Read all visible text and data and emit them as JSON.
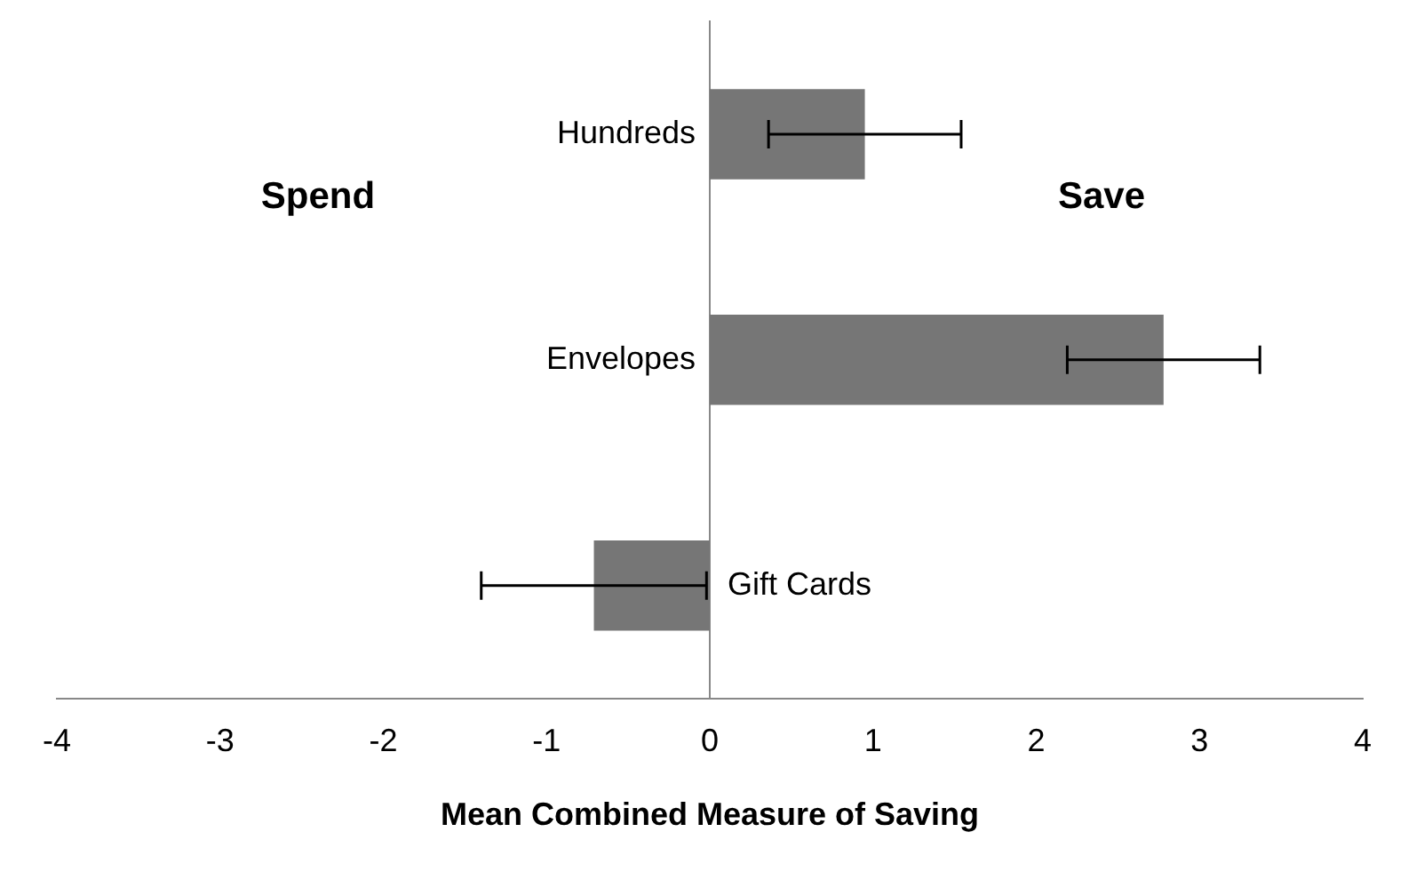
{
  "chart_data": {
    "type": "bar",
    "orientation": "horizontal",
    "xlabel": "Mean Combined Measure of Saving",
    "categories": [
      "Hundreds",
      "Envelopes",
      "Gift Cards"
    ],
    "values": [
      0.95,
      2.78,
      -0.71
    ],
    "errors": [
      0.59,
      0.59,
      0.69
    ],
    "color": "#767676",
    "xlim": [
      -4,
      4
    ],
    "xticks": [
      -4,
      -3,
      -2,
      -1,
      0,
      1,
      2,
      3,
      4
    ],
    "grid": false,
    "legend": false,
    "annotations": [
      "Spend",
      "Save"
    ]
  }
}
